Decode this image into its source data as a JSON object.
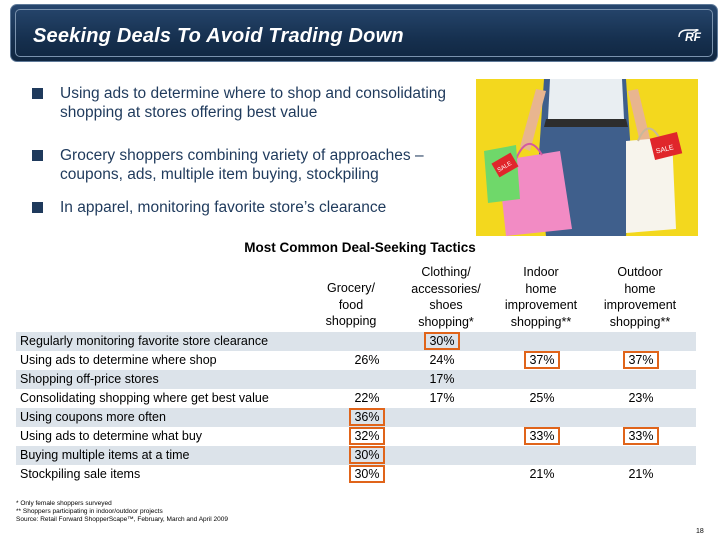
{
  "header": {
    "title": "Seeking Deals To Avoid Trading Down",
    "logo_text": "RF"
  },
  "bullets": [
    "Using ads to determine where to shop and consolidating shopping at stores offering best value",
    "Grocery shoppers combining variety of approaches – coupons, ads, multiple item buying, stockpiling",
    "In apparel, monitoring favorite store’s clearance"
  ],
  "photo": {
    "bag_text_1": "SALE",
    "bag_text_2": "SALE"
  },
  "table": {
    "title": "Most Common Deal-Seeking Tactics",
    "columns": [
      {
        "l1": "Grocery/",
        "l2": "food",
        "l3": "shopping"
      },
      {
        "l0": "Clothing/",
        "l1": "accessories/",
        "l2": "shoes",
        "l3": "shopping*"
      },
      {
        "l0": "Indoor",
        "l1": "home",
        "l2": "improvement",
        "l3": "shopping**"
      },
      {
        "l0": "Outdoor",
        "l1": "home",
        "l2": "improvement",
        "l3": "shopping**"
      }
    ],
    "rows": [
      {
        "label": "Regularly monitoring favorite store clearance",
        "grocery": "",
        "clothing": "30%",
        "indoor": "",
        "outdoor": ""
      },
      {
        "label": "Using ads to determine where shop",
        "grocery": "26%",
        "clothing": "24%",
        "indoor": "37%",
        "outdoor": "37%"
      },
      {
        "label": "Shopping off-price stores",
        "grocery": "",
        "clothing": "17%",
        "indoor": "",
        "outdoor": ""
      },
      {
        "label": "Consolidating shopping where get best value",
        "grocery": "22%",
        "clothing": "17%",
        "indoor": "25%",
        "outdoor": "23%"
      },
      {
        "label": "Using coupons more often",
        "grocery": "36%",
        "clothing": "",
        "indoor": "",
        "outdoor": ""
      },
      {
        "label": "Using ads to determine what buy",
        "grocery": "32%",
        "clothing": "",
        "indoor": "33%",
        "outdoor": "33%"
      },
      {
        "label": "Buying multiple items at a time",
        "grocery": "30%",
        "clothing": "",
        "indoor": "",
        "outdoor": ""
      },
      {
        "label": "Stockpiling sale items",
        "grocery": "30%",
        "clothing": "",
        "indoor": "21%",
        "outdoor": "21%"
      }
    ]
  },
  "footnotes": {
    "f1": "* Only female shoppers surveyed",
    "f2": "** Shoppers participating in indoor/outdoor projects",
    "source": "Source: Retail Forward ShopperScape™, February, March and April 2009"
  },
  "page_number": "18",
  "colors": {
    "header_bg": "#16304f",
    "bullet_text": "#1f3a5c",
    "highlight_border": "#e0641a",
    "row_shade": "#dce3ea",
    "photo_bg": "#f3d81e"
  }
}
